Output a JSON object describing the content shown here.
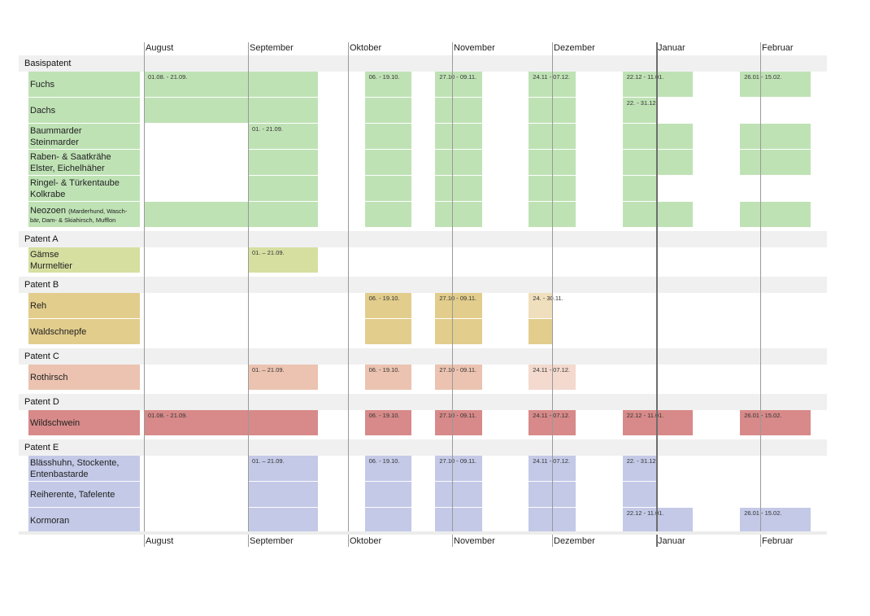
{
  "months_top": [
    "August",
    "September",
    "Oktober",
    "November",
    "Dezember",
    "Januar",
    "Februar"
  ],
  "months_bottom": [
    "August",
    "September",
    "Oktober",
    "November",
    "Dezember",
    "Januar",
    "Februar"
  ],
  "colors": {
    "basis": "#bfe2b5",
    "patent_a": "#d6dfa0",
    "patent_b": "#e2cd8c",
    "patent_b_light": "#f0dfbd",
    "patent_c": "#ebc3b0",
    "patent_c_light": "#f3d9ce",
    "patent_d": "#d78a89",
    "patent_e": "#c3c9e6"
  },
  "chart_data": {
    "type": "table",
    "sections": [
      {
        "label": "Basispatent",
        "color": "basis",
        "rows": [
          {
            "lines": [
              "Fuchs"
            ],
            "periods": [
              {
                "start": "01.08",
                "end": "21.09",
                "label": "01.08. - 21.09."
              },
              {
                "start": "06.10",
                "end": "19.10",
                "label": "06. - 19.10."
              },
              {
                "start": "27.10",
                "end": "09.11",
                "label": "27.10 - 09.11."
              },
              {
                "start": "24.11",
                "end": "07.12",
                "label": "24.11 - 07.12."
              },
              {
                "start": "22.12",
                "end": "11.01",
                "label": "22.12 - 11.01."
              },
              {
                "start": "26.01",
                "end": "15.02",
                "label": "26.01 - 15.02."
              }
            ]
          },
          {
            "lines": [
              "Dachs"
            ],
            "periods": [
              {
                "start": "01.08",
                "end": "21.09",
                "label": ""
              },
              {
                "start": "06.10",
                "end": "19.10",
                "label": ""
              },
              {
                "start": "27.10",
                "end": "09.11",
                "label": ""
              },
              {
                "start": "24.11",
                "end": "07.12",
                "label": ""
              },
              {
                "start": "22.12",
                "end": "31.12",
                "label": "22. - 31.12."
              }
            ]
          },
          {
            "lines": [
              "Baummarder",
              "Steinmarder"
            ],
            "periods": [
              {
                "start": "01.09",
                "end": "21.09",
                "label": "01. - 21.09."
              },
              {
                "start": "06.10",
                "end": "19.10",
                "label": ""
              },
              {
                "start": "27.10",
                "end": "09.11",
                "label": ""
              },
              {
                "start": "24.11",
                "end": "07.12",
                "label": ""
              },
              {
                "start": "22.12",
                "end": "11.01",
                "label": ""
              },
              {
                "start": "26.01",
                "end": "15.02",
                "label": ""
              }
            ]
          },
          {
            "lines": [
              "Raben- & Saatkrähe",
              "Elster, Eichelhäher"
            ],
            "periods": [
              {
                "start": "01.09",
                "end": "21.09",
                "label": ""
              },
              {
                "start": "06.10",
                "end": "19.10",
                "label": ""
              },
              {
                "start": "27.10",
                "end": "09.11",
                "label": ""
              },
              {
                "start": "24.11",
                "end": "07.12",
                "label": ""
              },
              {
                "start": "22.12",
                "end": "11.01",
                "label": ""
              },
              {
                "start": "26.01",
                "end": "15.02",
                "label": ""
              }
            ]
          },
          {
            "lines": [
              "Ringel- & Türkentaube",
              "Kolkrabe"
            ],
            "periods": [
              {
                "start": "01.09",
                "end": "21.09",
                "label": ""
              },
              {
                "start": "06.10",
                "end": "19.10",
                "label": ""
              },
              {
                "start": "27.10",
                "end": "09.11",
                "label": ""
              },
              {
                "start": "24.11",
                "end": "07.12",
                "label": ""
              },
              {
                "start": "22.12",
                "end": "31.12",
                "label": ""
              }
            ]
          },
          {
            "lines": [
              "Neozoen"
            ],
            "small": "(Marderhund, Wasch-",
            "small2": "bär, Dam- & Skiahirsch, Mufflon",
            "periods": [
              {
                "start": "01.08",
                "end": "21.09",
                "label": ""
              },
              {
                "start": "06.10",
                "end": "19.10",
                "label": ""
              },
              {
                "start": "27.10",
                "end": "09.11",
                "label": ""
              },
              {
                "start": "24.11",
                "end": "07.12",
                "label": ""
              },
              {
                "start": "22.12",
                "end": "11.01",
                "label": ""
              },
              {
                "start": "26.01",
                "end": "15.02",
                "label": ""
              }
            ]
          }
        ]
      },
      {
        "label": "Patent A",
        "color": "patent_a",
        "rows": [
          {
            "lines": [
              "Gämse",
              "Murmeltier"
            ],
            "periods": [
              {
                "start": "01.09",
                "end": "21.09",
                "label": "01. – 21.09."
              }
            ]
          }
        ]
      },
      {
        "label": "Patent B",
        "color": "patent_b",
        "rows": [
          {
            "lines": [
              "Reh"
            ],
            "periods": [
              {
                "start": "06.10",
                "end": "19.10",
                "label": "06. - 19.10."
              },
              {
                "start": "27.10",
                "end": "09.11",
                "label": "27.10 - 09.11."
              },
              {
                "start": "24.11",
                "end": "30.11",
                "label": "24. - 30.11.",
                "light": true
              }
            ]
          },
          {
            "lines": [
              "Waldschnepfe"
            ],
            "periods": [
              {
                "start": "06.10",
                "end": "19.10",
                "label": ""
              },
              {
                "start": "27.10",
                "end": "09.11",
                "label": ""
              },
              {
                "start": "24.11",
                "end": "30.11",
                "label": ""
              }
            ]
          }
        ]
      },
      {
        "label": "Patent C",
        "color": "patent_c",
        "rows": [
          {
            "lines": [
              "Rothirsch"
            ],
            "periods": [
              {
                "start": "01.09",
                "end": "21.09",
                "label": "01. – 21.09."
              },
              {
                "start": "06.10",
                "end": "19.10",
                "label": "06. - 19.10."
              },
              {
                "start": "27.10",
                "end": "09.11",
                "label": "27.10 - 09.11."
              },
              {
                "start": "24.11",
                "end": "07.12",
                "label": "24.11 - 07.12.",
                "light": true
              }
            ]
          }
        ]
      },
      {
        "label": "Patent D",
        "color": "patent_d",
        "rows": [
          {
            "lines": [
              "Wildschwein"
            ],
            "periods": [
              {
                "start": "01.08",
                "end": "21.09",
                "label": "01.08. - 21.09."
              },
              {
                "start": "06.10",
                "end": "19.10",
                "label": "06. - 19.10."
              },
              {
                "start": "27.10",
                "end": "09.11",
                "label": "27.10 - 09.11."
              },
              {
                "start": "24.11",
                "end": "07.12",
                "label": "24.11 - 07.12."
              },
              {
                "start": "22.12",
                "end": "11.01",
                "label": "22.12 - 11.01."
              },
              {
                "start": "26.01",
                "end": "15.02",
                "label": "26.01 - 15.02."
              }
            ]
          }
        ]
      },
      {
        "label": "Patent E",
        "color": "patent_e",
        "rows": [
          {
            "lines": [
              "Blässhuhn, Stockente,",
              "Entenbastarde"
            ],
            "periods": [
              {
                "start": "01.09",
                "end": "21.09",
                "label": "01. – 21.09."
              },
              {
                "start": "06.10",
                "end": "19.10",
                "label": "06. - 19.10."
              },
              {
                "start": "27.10",
                "end": "09.11",
                "label": "27.10 - 09.11."
              },
              {
                "start": "24.11",
                "end": "07.12",
                "label": "24.11 - 07.12."
              },
              {
                "start": "22.12",
                "end": "31.12",
                "label": "22. - 31.12."
              }
            ]
          },
          {
            "lines": [
              "Reiherente, Tafelente"
            ],
            "periods": [
              {
                "start": "01.09",
                "end": "21.09",
                "label": ""
              },
              {
                "start": "06.10",
                "end": "19.10",
                "label": ""
              },
              {
                "start": "27.10",
                "end": "09.11",
                "label": ""
              },
              {
                "start": "24.11",
                "end": "07.12",
                "label": ""
              },
              {
                "start": "22.12",
                "end": "31.12",
                "label": ""
              }
            ]
          },
          {
            "lines": [
              "Kormoran"
            ],
            "periods": [
              {
                "start": "01.09",
                "end": "21.09",
                "label": ""
              },
              {
                "start": "06.10",
                "end": "19.10",
                "label": ""
              },
              {
                "start": "27.10",
                "end": "09.11",
                "label": ""
              },
              {
                "start": "24.11",
                "end": "07.12",
                "label": ""
              },
              {
                "start": "22.12",
                "end": "11.01",
                "label": "22.12 - 11.01."
              },
              {
                "start": "26.01",
                "end": "15.02",
                "label": "26.01 - 15.02."
              }
            ]
          }
        ]
      }
    ]
  }
}
